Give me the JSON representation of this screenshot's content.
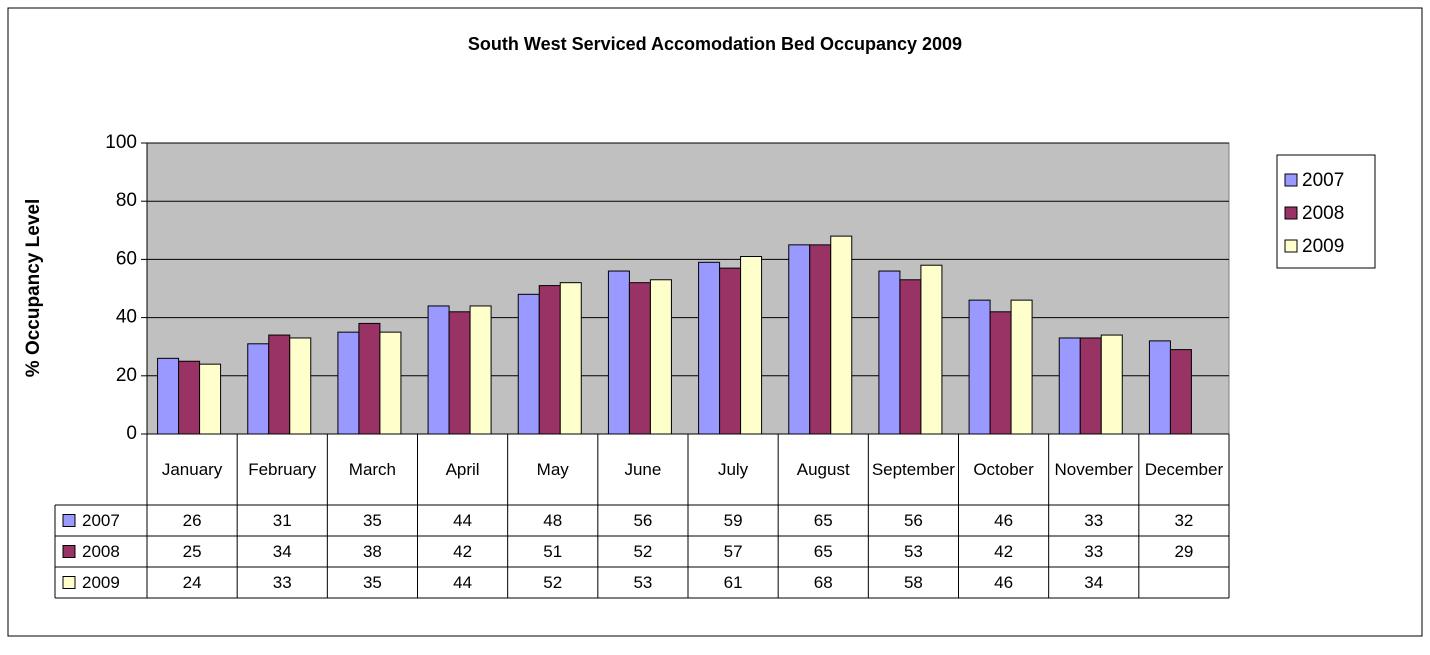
{
  "chart_data": {
    "type": "bar",
    "title": "South West Serviced Accomodation Bed Occupancy 2009",
    "y_label": "% Occupancy Level",
    "categories": [
      "January",
      "February",
      "March",
      "April",
      "May",
      "June",
      "July",
      "August",
      "September",
      "October",
      "November",
      "December"
    ],
    "series": [
      {
        "name": "2007",
        "color": "#9999ff",
        "values": [
          26,
          31,
          35,
          44,
          48,
          56,
          59,
          65,
          56,
          46,
          33,
          32
        ]
      },
      {
        "name": "2008",
        "color": "#993366",
        "values": [
          25,
          34,
          38,
          42,
          51,
          52,
          57,
          65,
          53,
          42,
          33,
          29
        ]
      },
      {
        "name": "2009",
        "color": "#ffffcc",
        "values": [
          24,
          33,
          35,
          44,
          52,
          53,
          61,
          68,
          58,
          46,
          34,
          null
        ]
      }
    ],
    "ylim": [
      0,
      100
    ],
    "yticks": [
      0,
      20,
      40,
      60,
      80,
      100
    ],
    "grid": true,
    "legend": "right",
    "plot_background": "#c0c0c0",
    "data_table": true
  }
}
